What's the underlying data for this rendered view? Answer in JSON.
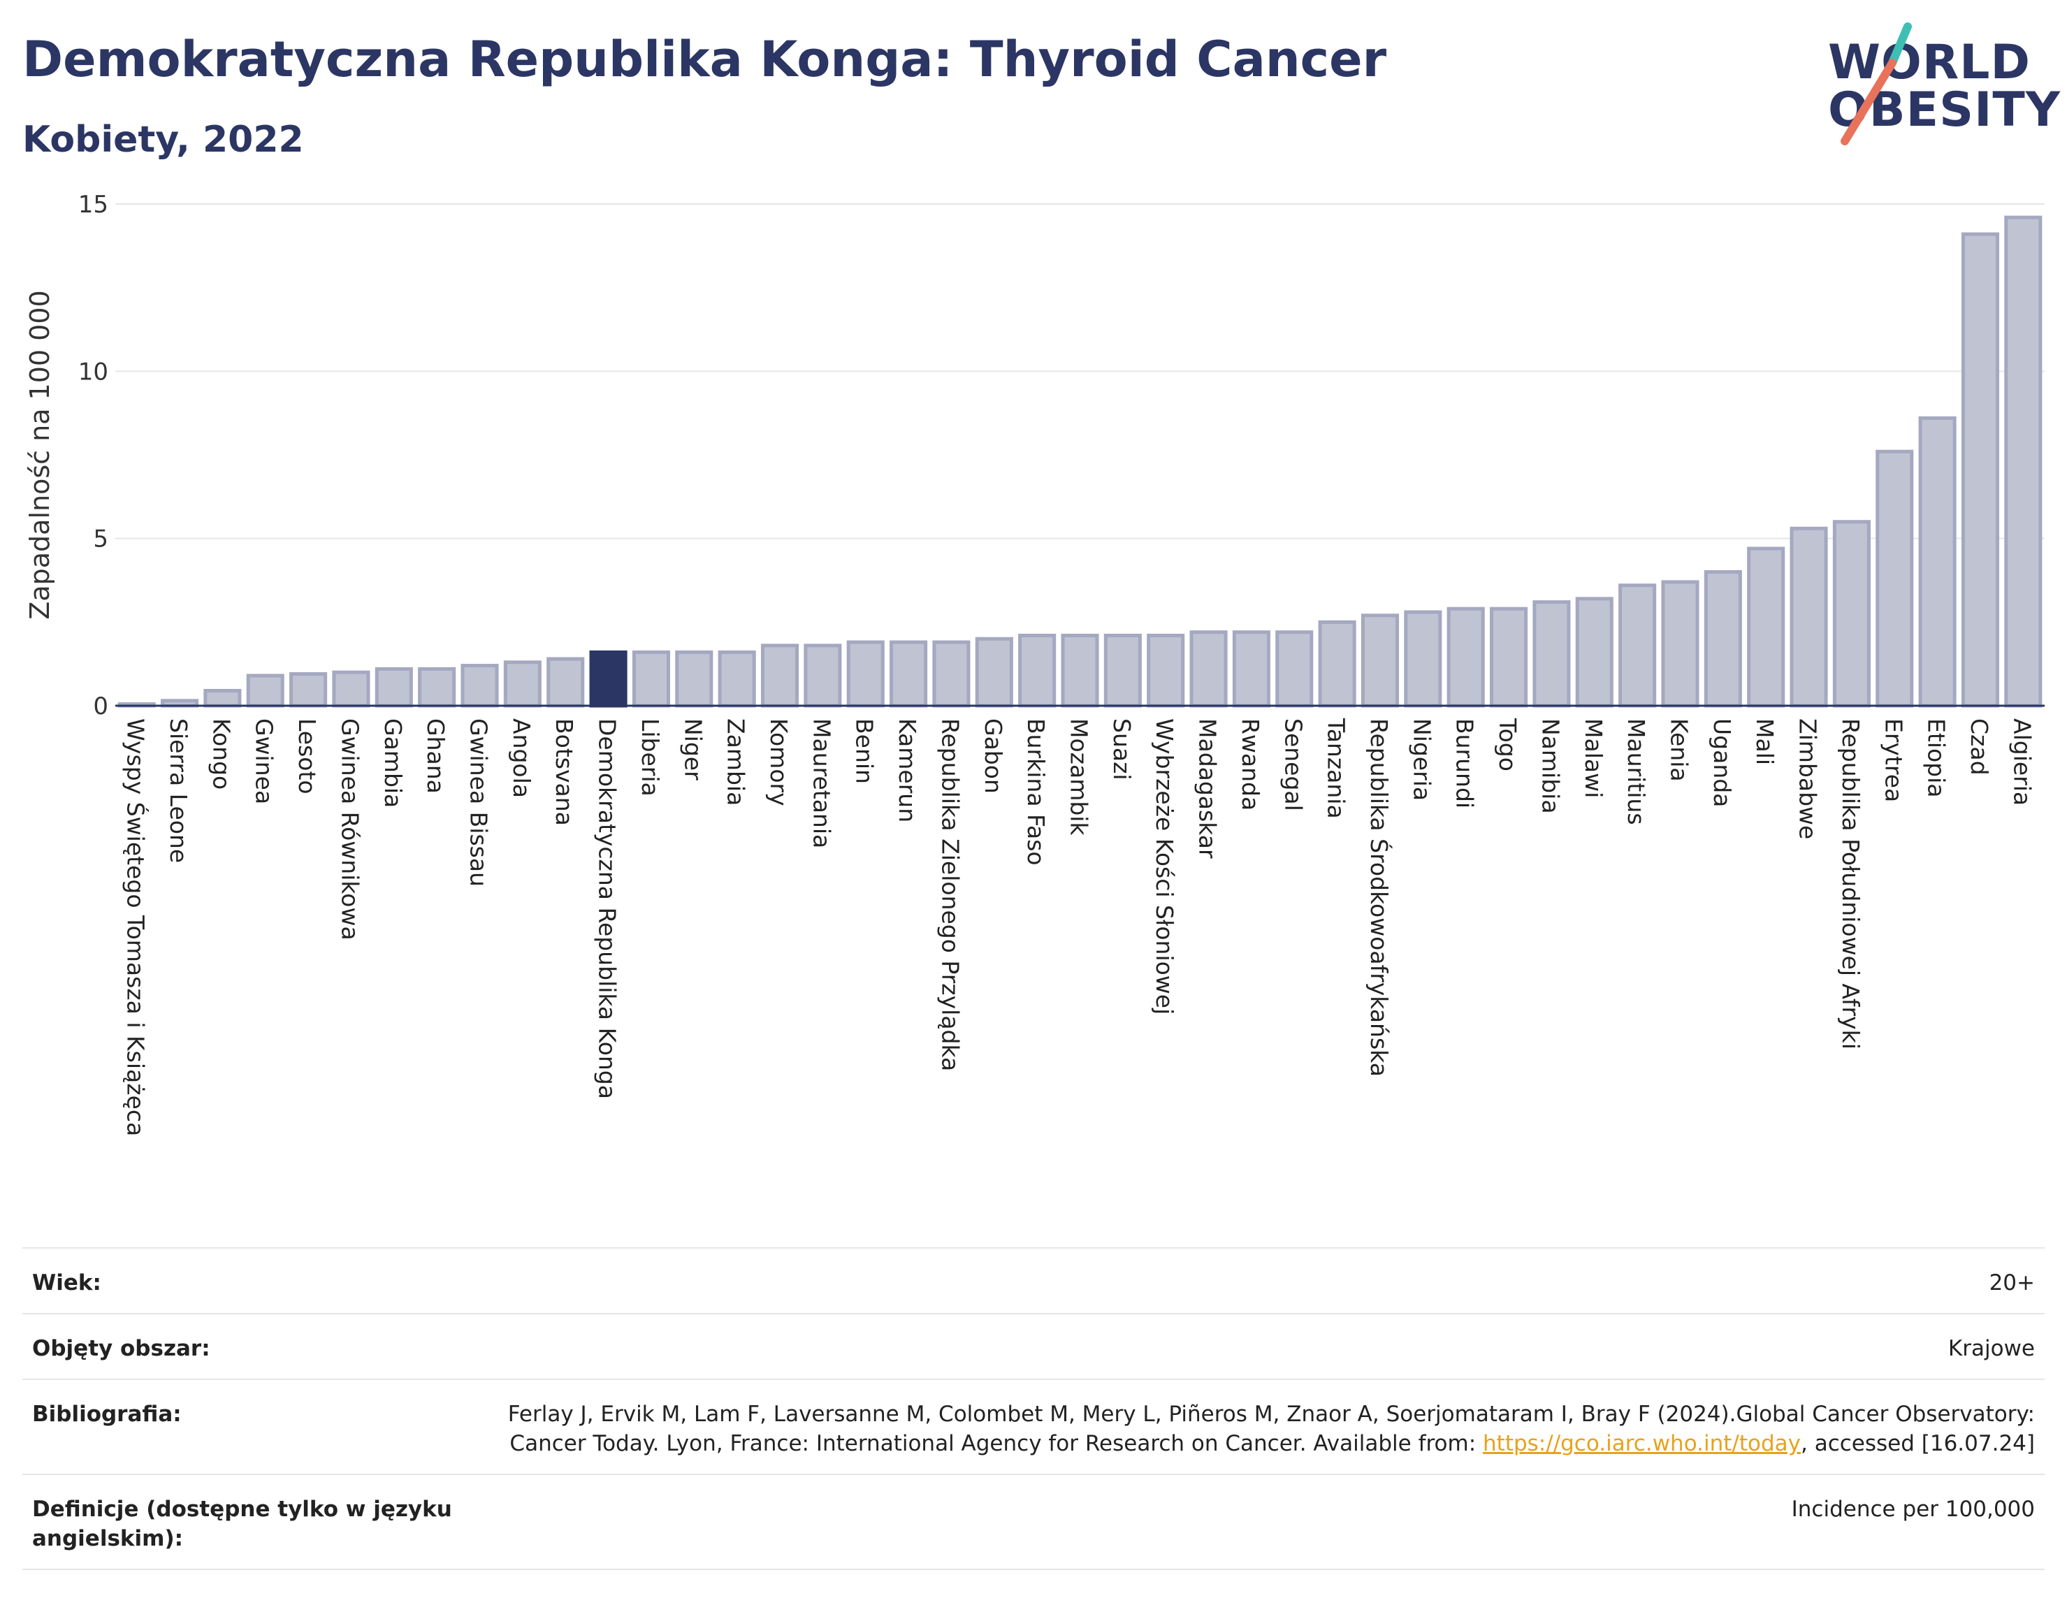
{
  "header": {
    "title": "Demokratyczna Republika Konga: Thyroid Cancer",
    "subtitle": "Kobiety, 2022"
  },
  "logo": {
    "line1": "WORLD",
    "line2": "OBESITY",
    "colors": {
      "text": "#2b3664",
      "slash_teal": "#3fbfb4",
      "slash_red": "#e8735a"
    }
  },
  "chart_data": {
    "type": "bar",
    "title": "",
    "xlabel": "",
    "ylabel": "Zapadalność na 100 000",
    "ylim": [
      0,
      15
    ],
    "yticks": [
      0,
      5,
      10,
      15
    ],
    "grid": true,
    "highlight": "Demokratyczna Republika Konga",
    "colors": {
      "bar": "#c0c3d2",
      "bar_edge": "#a4a8c0",
      "highlight": "#2b3664",
      "grid": "#e6e6e6",
      "axis": "#2b3664"
    },
    "categories": [
      "Wyspy Świętego Tomasza i Książęca",
      "Sierra Leone",
      "Kongo",
      "Gwinea",
      "Lesoto",
      "Gwinea Równikowa",
      "Gambia",
      "Ghana",
      "Gwinea Bissau",
      "Angola",
      "Botsvana",
      "Demokratyczna Republika Konga",
      "Liberia",
      "Niger",
      "Zambia",
      "Komory",
      "Mauretania",
      "Benin",
      "Kamerun",
      "Republika Zielonego Przylądka",
      "Gabon",
      "Burkina Faso",
      "Mozambik",
      "Suazi",
      "Wybrzeże Kości Słoniowej",
      "Madagaskar",
      "Rwanda",
      "Senegal",
      "Tanzania",
      "Republika Środkowoafrykańska",
      "Nigeria",
      "Burundi",
      "Togo",
      "Namibia",
      "Malawi",
      "Mauritius",
      "Kenia",
      "Uganda",
      "Mali",
      "Zimbabwe",
      "Republika Południowej Afryki",
      "Erytrea",
      "Etiopia",
      "Czad",
      "Algieria"
    ],
    "values": [
      0.05,
      0.15,
      0.45,
      0.9,
      0.95,
      1.0,
      1.1,
      1.1,
      1.2,
      1.3,
      1.4,
      1.6,
      1.6,
      1.6,
      1.6,
      1.8,
      1.8,
      1.9,
      1.9,
      1.9,
      2.0,
      2.1,
      2.1,
      2.1,
      2.1,
      2.2,
      2.2,
      2.2,
      2.5,
      2.7,
      2.8,
      2.9,
      2.9,
      3.1,
      3.2,
      3.6,
      3.7,
      4.0,
      4.7,
      5.3,
      5.5,
      7.6,
      8.6,
      14.1,
      14.6
    ]
  },
  "meta": {
    "age_label": "Wiek:",
    "age_value": "20+",
    "coverage_label": "Objęty obszar:",
    "coverage_value": "Krajowe",
    "bibliography_label": "Bibliografia:",
    "bibliography_text_1": "Ferlay J, Ervik M, Lam F, Laversanne M, Colombet M, Mery L, Piñeros M, Znaor A, Soerjomataram I, Bray F (2024).Global Cancer Observatory: Cancer Today. Lyon, France: International Agency for Research on Cancer. Available from: ",
    "bibliography_link": "https://gco.iarc.who.int/today",
    "bibliography_text_2": ", accessed [16.07.24]",
    "definitions_label": "Definicje (dostępne tylko w języku angielskim):",
    "definitions_value": "Incidence per 100,000"
  }
}
